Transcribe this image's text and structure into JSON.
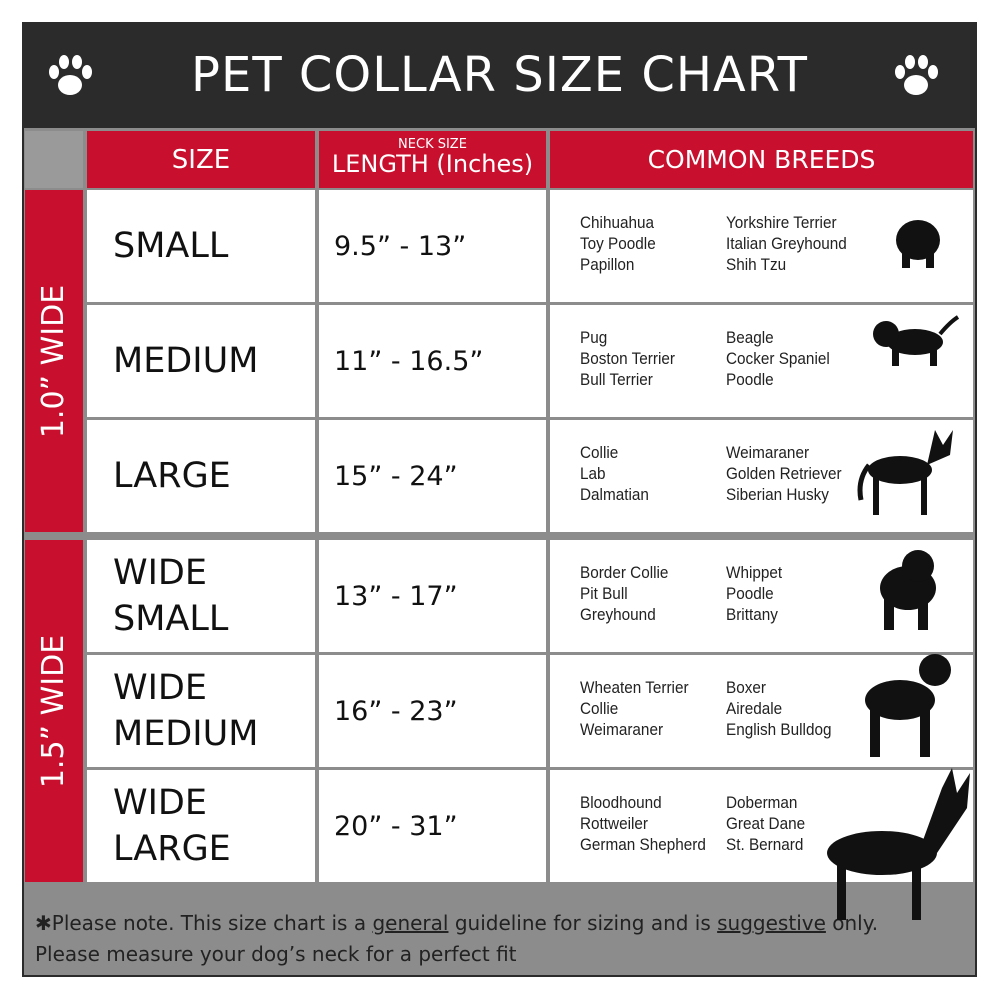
{
  "title": "PET COLLAR SIZE CHART",
  "header": {
    "size": "SIZE",
    "neck_size": "NECK SIZE",
    "length": "LENGTH (Inches)",
    "breeds": "COMMON BREEDS"
  },
  "groups": [
    {
      "label": "1.0” WIDE",
      "rows": [
        {
          "size": "SMALL",
          "length": "9.5” - 13”",
          "breeds_a": [
            "Chihuahua",
            "Toy Poodle",
            "Papillon"
          ],
          "breeds_b": [
            "Yorkshire Terrier",
            "Italian Greyhound",
            "Shih Tzu"
          ]
        },
        {
          "size": "MEDIUM",
          "length": "11” - 16.5”",
          "breeds_a": [
            "Pug",
            "Boston Terrier",
            "Bull Terrier"
          ],
          "breeds_b": [
            "Beagle",
            "Cocker Spaniel",
            "Poodle"
          ]
        },
        {
          "size": "LARGE",
          "length": "15” - 24”",
          "breeds_a": [
            "Collie",
            "Lab",
            "Dalmatian"
          ],
          "breeds_b": [
            "Weimaraner",
            "Golden Retriever",
            "Siberian Husky"
          ]
        }
      ]
    },
    {
      "label": "1.5” WIDE",
      "rows": [
        {
          "size": "WIDE SMALL",
          "length": "13” - 17”",
          "breeds_a": [
            "Border Collie",
            "Pit Bull",
            "Greyhound"
          ],
          "breeds_b": [
            "Whippet",
            "Poodle",
            "Brittany"
          ]
        },
        {
          "size": "WIDE MEDIUM",
          "length": "16” - 23”",
          "breeds_a": [
            "Wheaten Terrier",
            "Collie",
            "Weimaraner"
          ],
          "breeds_b": [
            "Boxer",
            "Airedale",
            "English Bulldog"
          ]
        },
        {
          "size": "WIDE LARGE",
          "length": "20” - 31”",
          "breeds_a": [
            "Bloodhound",
            "Rottweiler",
            "German Shepherd"
          ],
          "breeds_b": [
            "Doberman",
            "Great Dane",
            "St. Bernard"
          ]
        }
      ]
    }
  ],
  "note": {
    "line1": [
      "✱Please note. This size chart is a ",
      "general",
      " guideline for sizing and is ",
      "suggestive",
      " only."
    ],
    "line2": "Please measure your dog’s neck for a perfect fit"
  }
}
